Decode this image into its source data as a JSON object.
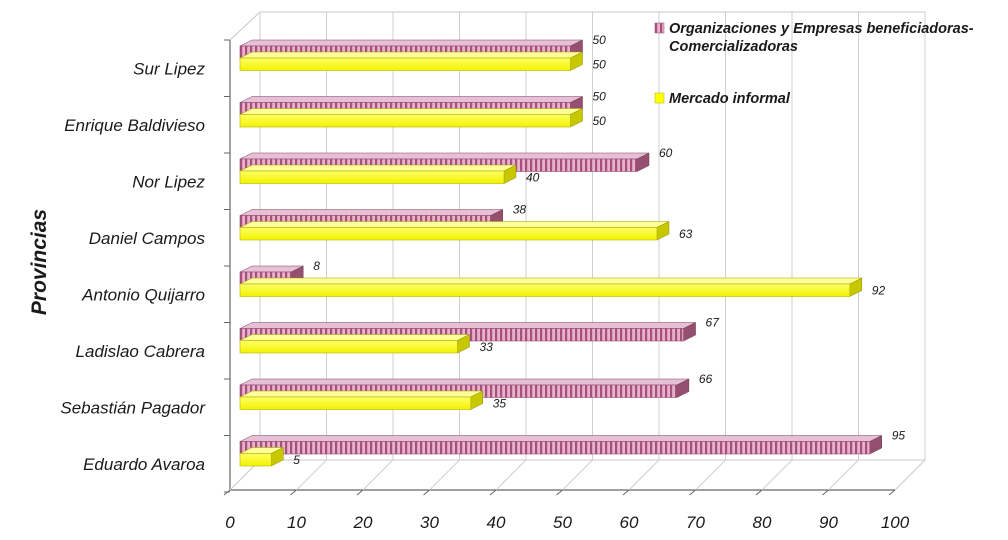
{
  "chart_data": {
    "type": "bar",
    "orientation": "horizontal",
    "style": "3d-clustered",
    "categories": [
      "Sur Lipez",
      "Enrique Baldivieso",
      "Nor Lipez",
      "Daniel Campos",
      "Antonio Quijarro",
      "Ladislao Cabrera",
      "Sebastián Pagador",
      "Eduardo Avaroa"
    ],
    "series": [
      {
        "name": "Organizaciones y Empresas beneficiadoras-Comercializadoras",
        "name_lines": [
          "Organizaciones y Empresas beneficiadoras-",
          "Comercializadoras"
        ],
        "color": "#c66b95",
        "values": [
          50,
          50,
          60,
          38,
          8,
          67,
          66,
          95
        ]
      },
      {
        "name": "Mercado informal",
        "name_lines": [
          "Mercado informal"
        ],
        "color": "#ffff00",
        "values": [
          50,
          50,
          40,
          63,
          92,
          33,
          35,
          5
        ]
      }
    ],
    "x_ticks": [
      "0",
      "10",
      "20",
      "30",
      "40",
      "50",
      "60",
      "70",
      "80",
      "90",
      "100"
    ],
    "xlim": [
      0,
      100
    ],
    "ylabel": "Provincias",
    "xlabel": "",
    "grid": true,
    "legend_position": "top-right"
  }
}
